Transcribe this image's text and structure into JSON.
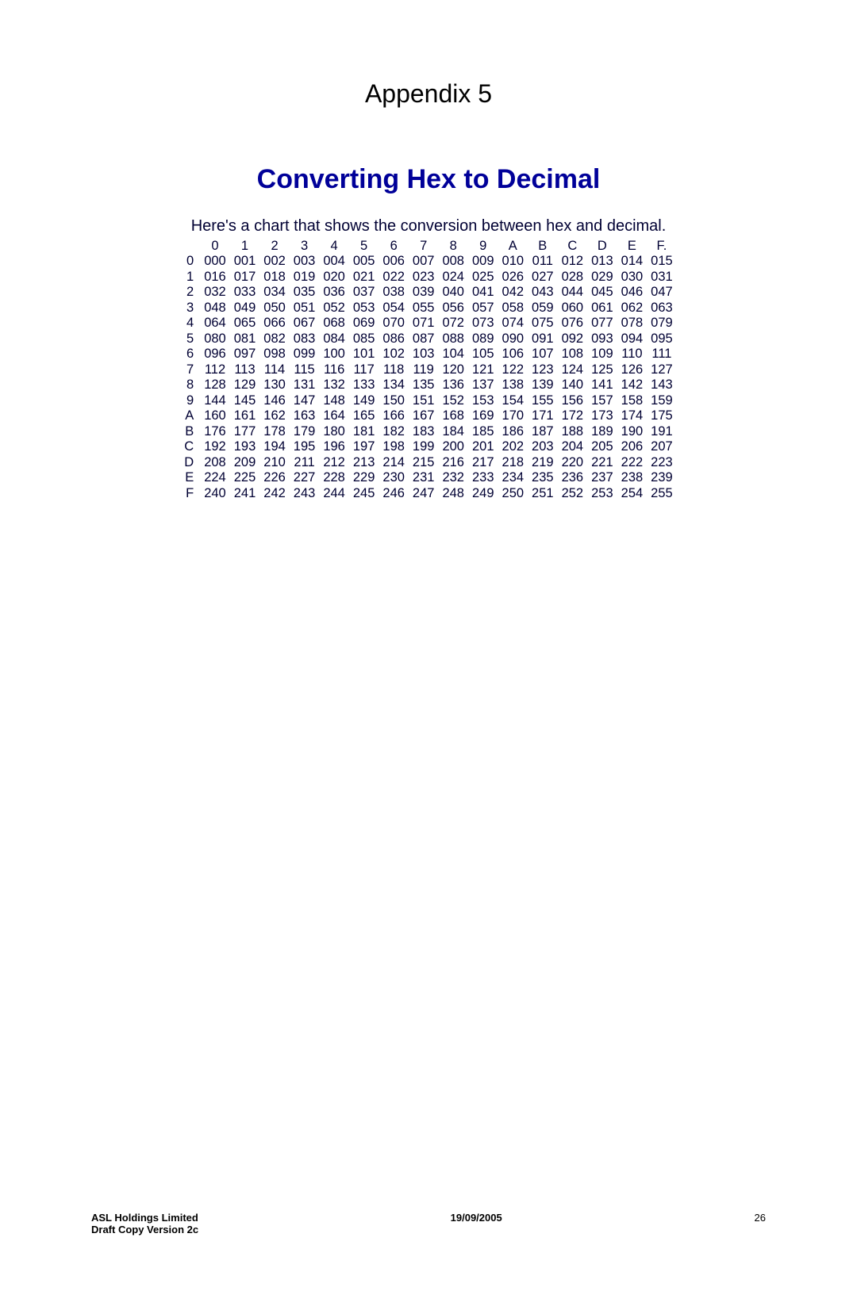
{
  "appendix_title": "Appendix 5",
  "main_title": "Converting Hex to Decimal",
  "main_title_color": "#000099",
  "intro_text": "Here's a chart that shows the conversion between hex and decimal.",
  "text_color": "#000033",
  "table": {
    "type": "table",
    "col_headers": [
      "0",
      "1",
      "2",
      "3",
      "4",
      "5",
      "6",
      "7",
      "8",
      "9",
      "A",
      "B",
      "C",
      "D",
      "E",
      "F."
    ],
    "row_labels": [
      "0",
      "1",
      "2",
      "3",
      "4",
      "5",
      "6",
      "7",
      "8",
      "9",
      "A",
      "B",
      "C",
      "D",
      "E",
      "F"
    ],
    "rows": [
      [
        "000",
        "001",
        "002",
        "003",
        "004",
        "005",
        "006",
        "007",
        "008",
        "009",
        "010",
        "011",
        "012",
        "013",
        "014",
        "015"
      ],
      [
        "016",
        "017",
        "018",
        "019",
        "020",
        "021",
        "022",
        "023",
        "024",
        "025",
        "026",
        "027",
        "028",
        "029",
        "030",
        "031"
      ],
      [
        "032",
        "033",
        "034",
        "035",
        "036",
        "037",
        "038",
        "039",
        "040",
        "041",
        "042",
        "043",
        "044",
        "045",
        "046",
        "047"
      ],
      [
        "048",
        "049",
        "050",
        "051",
        "052",
        "053",
        "054",
        "055",
        "056",
        "057",
        "058",
        "059",
        "060",
        "061",
        "062",
        "063"
      ],
      [
        "064",
        "065",
        "066",
        "067",
        "068",
        "069",
        "070",
        "071",
        "072",
        "073",
        "074",
        "075",
        "076",
        "077",
        "078",
        "079"
      ],
      [
        "080",
        "081",
        "082",
        "083",
        "084",
        "085",
        "086",
        "087",
        "088",
        "089",
        "090",
        "091",
        "092",
        "093",
        "094",
        "095"
      ],
      [
        "096",
        "097",
        "098",
        "099",
        "100",
        "101",
        "102",
        "103",
        "104",
        "105",
        "106",
        "107",
        "108",
        "109",
        "110",
        "111"
      ],
      [
        "112",
        "113",
        "114",
        "115",
        "116",
        "117",
        "118",
        "119",
        "120",
        "121",
        "122",
        "123",
        "124",
        "125",
        "126",
        "127"
      ],
      [
        "128",
        "129",
        "130",
        "131",
        "132",
        "133",
        "134",
        "135",
        "136",
        "137",
        "138",
        "139",
        "140",
        "141",
        "142",
        "143"
      ],
      [
        "144",
        "145",
        "146",
        "147",
        "148",
        "149",
        "150",
        "151",
        "152",
        "153",
        "154",
        "155",
        "156",
        "157",
        "158",
        "159"
      ],
      [
        "160",
        "161",
        "162",
        "163",
        "164",
        "165",
        "166",
        "167",
        "168",
        "169",
        "170",
        "171",
        "172",
        "173",
        "174",
        "175"
      ],
      [
        "176",
        "177",
        "178",
        "179",
        "180",
        "181",
        "182",
        "183",
        "184",
        "185",
        "186",
        "187",
        "188",
        "189",
        "190",
        "191"
      ],
      [
        "192",
        "193",
        "194",
        "195",
        "196",
        "197",
        "198",
        "199",
        "200",
        "201",
        "202",
        "203",
        "204",
        "205",
        "206",
        "207"
      ],
      [
        "208",
        "209",
        "210",
        "211",
        "212",
        "213",
        "214",
        "215",
        "216",
        "217",
        "218",
        "219",
        "220",
        "221",
        "222",
        "223"
      ],
      [
        "224",
        "225",
        "226",
        "227",
        "228",
        "229",
        "230",
        "231",
        "232",
        "233",
        "234",
        "235",
        "236",
        "237",
        "238",
        "239"
      ],
      [
        "240",
        "241",
        "242",
        "243",
        "244",
        "245",
        "246",
        "247",
        "248",
        "249",
        "250",
        "251",
        "252",
        "253",
        "254",
        "255"
      ]
    ],
    "font_size": 16.5,
    "cell_color": "#000033",
    "background_color": "#ffffff"
  },
  "footer": {
    "company": "ASL Holdings Limited",
    "subline": "Draft Copy Version 2c",
    "date": "19/09/2005",
    "page_number": "26"
  }
}
